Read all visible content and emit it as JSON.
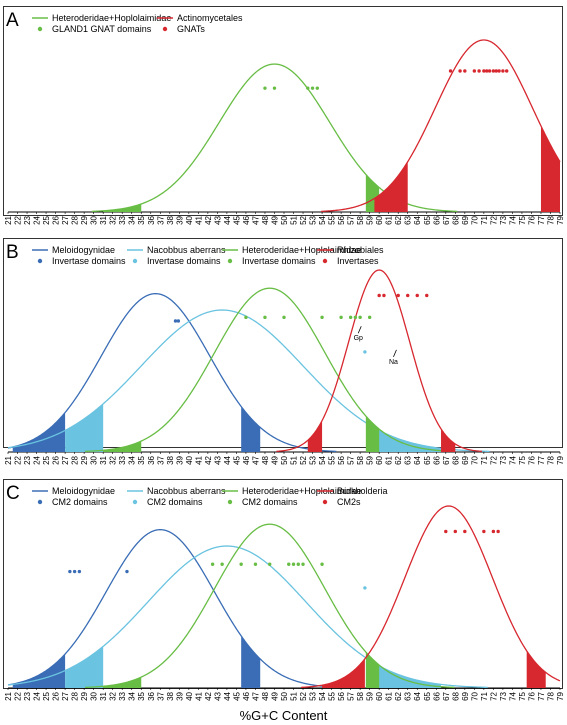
{
  "xlabel": "%G+C Content",
  "xaxis": {
    "min": 21,
    "max": 79
  },
  "colors": {
    "darkblue": "#3a6db5",
    "lightblue": "#6ac3e0",
    "green": "#68bd45",
    "red": "#d7282f"
  },
  "chart_data": [
    {
      "panel": "A",
      "type": "line",
      "xlim": [
        21,
        79
      ],
      "series": [
        {
          "name": "Heteroderidae+Hoplolaimidae",
          "color": "green",
          "mean": 49,
          "sd": 5.8,
          "peak": 0.86,
          "tails": [
            [
              31,
              35
            ],
            [
              58.6,
              60
            ]
          ]
        },
        {
          "name": "Actinomycetales",
          "color": "red",
          "mean": 71,
          "sd": 5.1,
          "peak": 1.0,
          "tails": [
            [
              59.5,
              63
            ],
            [
              77,
              79
            ]
          ]
        }
      ],
      "dots": [
        {
          "name": "GLAND1 GNAT domains",
          "color": "green",
          "y": 0.72,
          "x": [
            48,
            49,
            52.5,
            53,
            53.5
          ]
        },
        {
          "name": "GNATs",
          "color": "red",
          "y": 0.82,
          "x": [
            67.5,
            68.5,
            69,
            70,
            70.5,
            71,
            71.3,
            71.6,
            72,
            72.3,
            72.6,
            73,
            73.4
          ]
        }
      ],
      "annotations": []
    },
    {
      "panel": "B",
      "type": "line",
      "xlim": [
        21,
        79
      ],
      "series": [
        {
          "name": "Meloidogynidae",
          "color": "darkblue",
          "mean": 36.5,
          "sd": 5.7,
          "peak": 0.87,
          "tails": [
            [
              21.5,
              27
            ],
            [
              45.5,
              47.5
            ]
          ]
        },
        {
          "name": "Nacobbus aberrans",
          "color": "lightblue",
          "mean": 43.5,
          "sd": 8.5,
          "peak": 0.78,
          "tails": [
            [
              27,
              31
            ],
            [
              59,
              66.5
            ]
          ]
        },
        {
          "name": "Heteroderidae+Hoplolaimidae",
          "color": "green",
          "mean": 48.5,
          "sd": 5.8,
          "peak": 0.9,
          "tails": [
            [
              31,
              35
            ],
            [
              58.6,
              60
            ]
          ]
        },
        {
          "name": "Rhizobiales",
          "color": "red",
          "mean": 60,
          "sd": 3.2,
          "peak": 1.0,
          "tails": [
            [
              52.5,
              54
            ],
            [
              66.5,
              68
            ]
          ]
        }
      ],
      "dots": [
        {
          "name": "Invertase domains",
          "color": "darkblue",
          "y": 0.72,
          "x": [
            38.6,
            38.9
          ]
        },
        {
          "name": "Invertase domains",
          "color": "lightblue",
          "y": 0.55,
          "x": [
            58.5
          ]
        },
        {
          "name": "Invertase domains",
          "color": "green",
          "y": 0.74,
          "x": [
            46,
            48,
            50,
            54,
            56,
            57,
            57.5,
            58,
            59
          ]
        },
        {
          "name": "Invertases",
          "color": "red",
          "y": 0.86,
          "x": [
            60,
            60.5,
            62,
            63,
            64,
            65
          ]
        }
      ],
      "annotations": [
        {
          "text": "Gp",
          "x": 57.8,
          "y": 0.68
        },
        {
          "text": "Na",
          "x": 61.5,
          "y": 0.55
        }
      ]
    },
    {
      "panel": "C",
      "type": "line",
      "xlim": [
        21,
        79
      ],
      "series": [
        {
          "name": "Meloidogynidae",
          "color": "darkblue",
          "mean": 37,
          "sd": 5.7,
          "peak": 0.87,
          "tails": [
            [
              21.5,
              27
            ],
            [
              45.5,
              47.5
            ]
          ]
        },
        {
          "name": "Nacobbus aberrans",
          "color": "lightblue",
          "mean": 44,
          "sd": 8.3,
          "peak": 0.78,
          "tails": [
            [
              27,
              31
            ],
            [
              59,
              66.5
            ]
          ]
        },
        {
          "name": "Heteroderidae+Hoplolaimidae",
          "color": "green",
          "mean": 48.5,
          "sd": 5.8,
          "peak": 0.9,
          "tails": [
            [
              31,
              35
            ],
            [
              58.6,
              60
            ]
          ]
        },
        {
          "name": "Burkholderia",
          "color": "red",
          "mean": 67.3,
          "sd": 4.6,
          "peak": 1.0,
          "tails": [
            [
              54,
              58.5
            ],
            [
              75.5,
              77.5
            ]
          ]
        }
      ],
      "dots": [
        {
          "name": "CM2 domains",
          "color": "darkblue",
          "y": 0.64,
          "x": [
            27.5,
            28,
            28.5,
            33.5
          ]
        },
        {
          "name": "CM2 domains",
          "color": "lightblue",
          "y": 0.55,
          "x": [
            58.5
          ]
        },
        {
          "name": "CM2 domains",
          "color": "green",
          "y": 0.68,
          "x": [
            42.5,
            43.5,
            45.5,
            47,
            48.5,
            50.5,
            51,
            51.5,
            52,
            54
          ]
        },
        {
          "name": "CM2s",
          "color": "red",
          "y": 0.86,
          "x": [
            67,
            68,
            69,
            71,
            72,
            72.5
          ]
        }
      ],
      "annotations": []
    }
  ]
}
